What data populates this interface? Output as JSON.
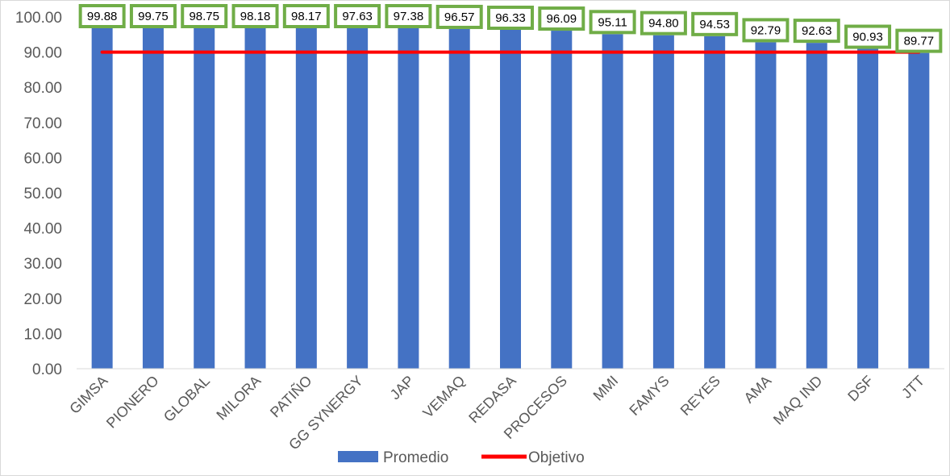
{
  "chart_data": {
    "type": "bar",
    "title": "",
    "xlabel": "",
    "ylabel": "",
    "categories": [
      "GIMSA",
      "PIONERO",
      "GLOBAL",
      "MILORA",
      "PATIÑO",
      "GG SYNERGY",
      "JAP",
      "VEMAQ",
      "REDASA",
      "PROCESOS",
      "MMI",
      "FAMYS",
      "REYES",
      "AMA",
      "MAQ IND",
      "DSF",
      "JTT"
    ],
    "series": [
      {
        "name": "Promedio",
        "type": "bar",
        "color": "#4472c4",
        "values": [
          99.88,
          99.75,
          98.75,
          98.18,
          98.17,
          97.63,
          97.38,
          96.57,
          96.33,
          96.09,
          95.11,
          94.8,
          94.53,
          92.79,
          92.63,
          90.93,
          89.77
        ],
        "labels": [
          "99.88",
          "99.75",
          "98.75",
          "98.18",
          "98.17",
          "97.63",
          "97.38",
          "96.57",
          "96.33",
          "96.09",
          "95.11",
          "94.80",
          "94.53",
          "92.79",
          "92.63",
          "90.93",
          "89.77"
        ],
        "label_border_color": "#70ad47"
      },
      {
        "name": "Objetivo",
        "type": "line",
        "color": "#ff0000",
        "value": 90
      }
    ],
    "y_ticks": [
      "0.00",
      "10.00",
      "20.00",
      "30.00",
      "40.00",
      "50.00",
      "60.00",
      "70.00",
      "80.00",
      "90.00",
      "100.00"
    ],
    "ylim": [
      0,
      100
    ],
    "grid": false,
    "legend_position": "bottom"
  }
}
